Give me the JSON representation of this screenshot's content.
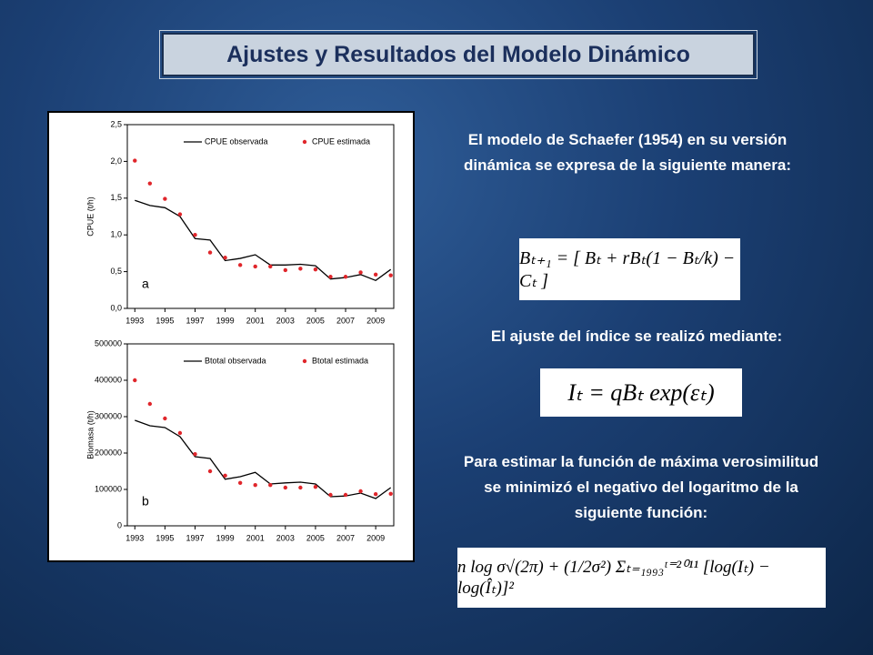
{
  "title": "Ajustes y Resultados del Modelo Dinámico",
  "text": [
    "El modelo de Schaefer (1954) en su versión dinámica se expresa de la siguiente manera:",
    "El ajuste del índice se realizó mediante:",
    "Para estimar la función de máxima verosimilitud se minimizó el negativo del logaritmo de la siguiente función:"
  ],
  "formulas": [
    "Bₜ₊₁ = [ Bₜ + rBₜ(1 − Bₜ/k) − Cₜ ]",
    "Iₜ = qBₜ exp(εₜ)",
    "n log σ√(2π) + (1/2σ²) Σₜ₌₁₉₉₃ᵗ⁼²⁰¹¹ [log(Iₜ) − log(Îₜ)]²"
  ],
  "chart_data": [
    {
      "type": "line",
      "ylabel": "CPUE (t/h)",
      "annotation": "a",
      "legend": "upper right",
      "x": [
        1993,
        1994,
        1995,
        1996,
        1997,
        1998,
        1999,
        2000,
        2001,
        2002,
        2003,
        2004,
        2005,
        2006,
        2007,
        2008,
        2009,
        2010
      ],
      "xlim": [
        1992.5,
        2010.2
      ],
      "xticks": [
        1993,
        1995,
        1997,
        1999,
        2001,
        2003,
        2005,
        2007,
        2009
      ],
      "ylim": [
        0,
        2.5
      ],
      "yticks": [
        {
          "value": 0,
          "label": "0,0"
        },
        {
          "value": 0.5,
          "label": "0,5"
        },
        {
          "value": 1,
          "label": "1,0"
        },
        {
          "value": 1.5,
          "label": "1,5"
        },
        {
          "value": 2,
          "label": "2,0"
        },
        {
          "value": 2.5,
          "label": "2,5"
        }
      ],
      "series": [
        {
          "name": "CPUE observada",
          "mode": "line",
          "color": "#000000",
          "values": [
            1.47,
            1.4,
            1.37,
            1.25,
            0.95,
            0.93,
            0.65,
            0.68,
            0.73,
            0.59,
            0.59,
            0.6,
            0.58,
            0.4,
            0.42,
            0.46,
            0.38,
            0.53
          ]
        },
        {
          "name": "CPUE estimada",
          "mode": "markers",
          "color": "#e0262b",
          "values": [
            2.01,
            1.7,
            1.49,
            1.28,
            1.0,
            0.76,
            0.69,
            0.59,
            0.57,
            0.57,
            0.52,
            0.54,
            0.53,
            0.43,
            0.43,
            0.49,
            0.46,
            0.45
          ]
        }
      ]
    },
    {
      "type": "line",
      "ylabel": "Biomasa (t/h)",
      "annotation": "b",
      "legend": "upper right",
      "x": [
        1993,
        1994,
        1995,
        1996,
        1997,
        1998,
        1999,
        2000,
        2001,
        2002,
        2003,
        2004,
        2005,
        2006,
        2007,
        2008,
        2009,
        2010
      ],
      "xlim": [
        1992.5,
        2010.2
      ],
      "xticks": [
        1993,
        1995,
        1997,
        1999,
        2001,
        2003,
        2005,
        2007,
        2009
      ],
      "ylim": [
        0,
        500000
      ],
      "yticks": [
        0,
        100000,
        200000,
        300000,
        400000,
        500000
      ],
      "series": [
        {
          "name": "Btotal observada",
          "mode": "line",
          "color": "#000000",
          "values": [
            290000,
            275000,
            270000,
            245000,
            190000,
            185000,
            128000,
            135000,
            147000,
            115000,
            118000,
            120000,
            115000,
            80000,
            82000,
            90000,
            75000,
            105000
          ]
        },
        {
          "name": "Btotal estimada",
          "mode": "markers",
          "color": "#e0262b",
          "values": [
            400000,
            335000,
            295000,
            255000,
            197000,
            150000,
            138000,
            118000,
            112000,
            112000,
            105000,
            105000,
            107000,
            85000,
            85000,
            95000,
            87000,
            88000
          ]
        }
      ]
    }
  ]
}
